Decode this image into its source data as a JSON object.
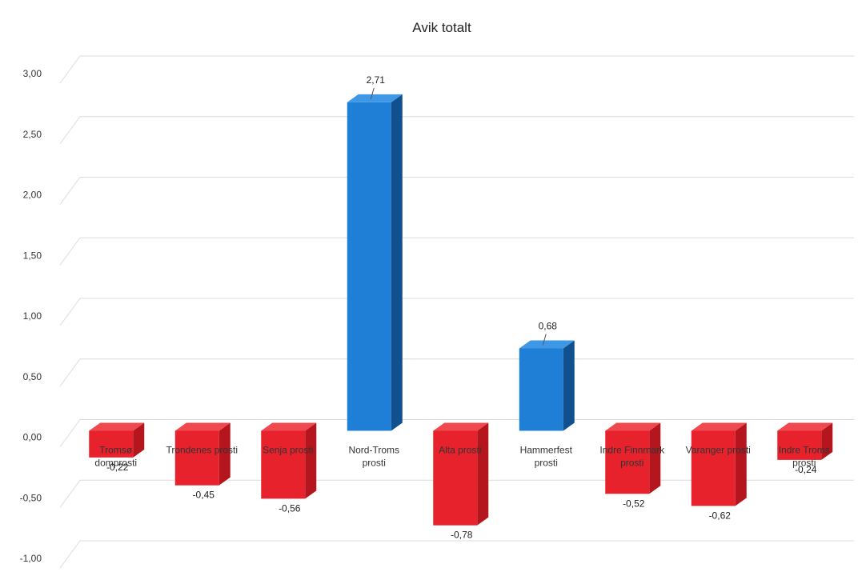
{
  "chart_data": {
    "type": "bar",
    "title": "Avik totalt",
    "xlabel": "",
    "ylabel": "",
    "ylim": [
      -1.0,
      3.0
    ],
    "yticks": [
      "-1,00",
      "-0,50",
      "0,00",
      "0,50",
      "1,00",
      "1,50",
      "2,00",
      "2,50",
      "3,00"
    ],
    "ytick_values": [
      -1.0,
      -0.5,
      0.0,
      0.5,
      1.0,
      1.5,
      2.0,
      2.5,
      3.0
    ],
    "grid": true,
    "legend": "none",
    "three_d": true,
    "categories": [
      [
        "Tromsø",
        "domprosti"
      ],
      [
        "Trondenes prosti"
      ],
      [
        "Senja prosti"
      ],
      [
        "Nord-Troms",
        "prosti"
      ],
      [
        "Alta prosti"
      ],
      [
        "Hammerfest",
        "prosti"
      ],
      [
        "Indre Finnmark",
        "prosti"
      ],
      [
        "Varanger prosti"
      ],
      [
        "Indre Troms",
        "prosti"
      ]
    ],
    "values": [
      -0.22,
      -0.45,
      -0.56,
      2.71,
      -0.78,
      0.68,
      -0.52,
      -0.62,
      -0.24
    ],
    "value_labels": [
      "-0,22",
      "-0,45",
      "-0,56",
      "2,71",
      "-0,78",
      "0,68",
      "-0,52",
      "-0,62",
      "-0,24"
    ],
    "colors": {
      "positive": "#1f7fd6",
      "positive_side": "#10508f",
      "positive_top": "#3f98e6",
      "negative": "#e8222c",
      "negative_side": "#b5151d",
      "negative_top": "#f0484f"
    }
  }
}
